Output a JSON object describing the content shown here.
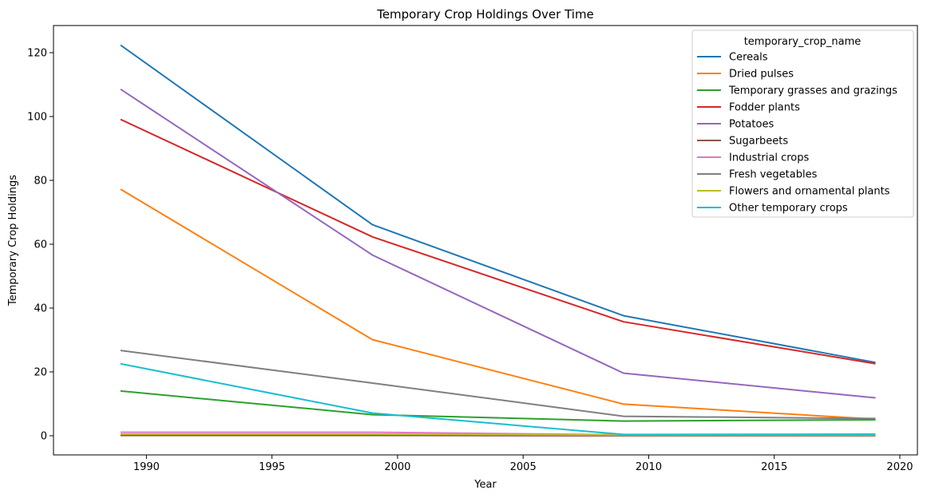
{
  "chart_data": {
    "type": "line",
    "title": "Temporary Crop Holdings Over Time",
    "xlabel": "Year",
    "ylabel": "Temporary Crop Holdings",
    "x": [
      1989,
      1999,
      2009,
      2019
    ],
    "xlim": [
      1986.3,
      2020.7
    ],
    "ylim": [
      -6,
      128.5
    ],
    "xticks": [
      1990,
      1995,
      2000,
      2005,
      2010,
      2015,
      2020
    ],
    "yticks": [
      0,
      20,
      40,
      60,
      80,
      100,
      120
    ],
    "grid": false,
    "legend": {
      "title": "temporary_crop_name",
      "position": "top-right"
    },
    "series": [
      {
        "name": "Cereals",
        "color": "#1f77b4",
        "values": [
          122.2,
          66.1,
          37.6,
          23.0
        ]
      },
      {
        "name": "Dried pulses",
        "color": "#ff7f0e",
        "values": [
          77.1,
          30.1,
          9.9,
          5.2
        ]
      },
      {
        "name": "Temporary grasses and grazings",
        "color": "#2ca02c",
        "values": [
          14.0,
          6.6,
          4.6,
          5.0
        ]
      },
      {
        "name": "Fodder plants",
        "color": "#d62728",
        "values": [
          99.0,
          62.3,
          35.7,
          22.6
        ]
      },
      {
        "name": "Potatoes",
        "color": "#9467bd",
        "values": [
          108.4,
          56.6,
          19.6,
          11.9
        ]
      },
      {
        "name": "Sugarbeets",
        "color": "#8c564b",
        "values": [
          0.1,
          0.1,
          0.0,
          0.0
        ]
      },
      {
        "name": "Industrial crops",
        "color": "#e377c2",
        "values": [
          1.1,
          1.1,
          0.3,
          0.4
        ]
      },
      {
        "name": "Fresh vegetables",
        "color": "#7f7f7f",
        "values": [
          26.7,
          16.5,
          6.1,
          5.4
        ]
      },
      {
        "name": "Flowers and ornamental plants",
        "color": "#bcbd22",
        "values": [
          0.5,
          0.5,
          0.2,
          0.2
        ]
      },
      {
        "name": "Other temporary crops",
        "color": "#17becf",
        "values": [
          22.5,
          7.1,
          0.4,
          0.5
        ]
      }
    ]
  }
}
